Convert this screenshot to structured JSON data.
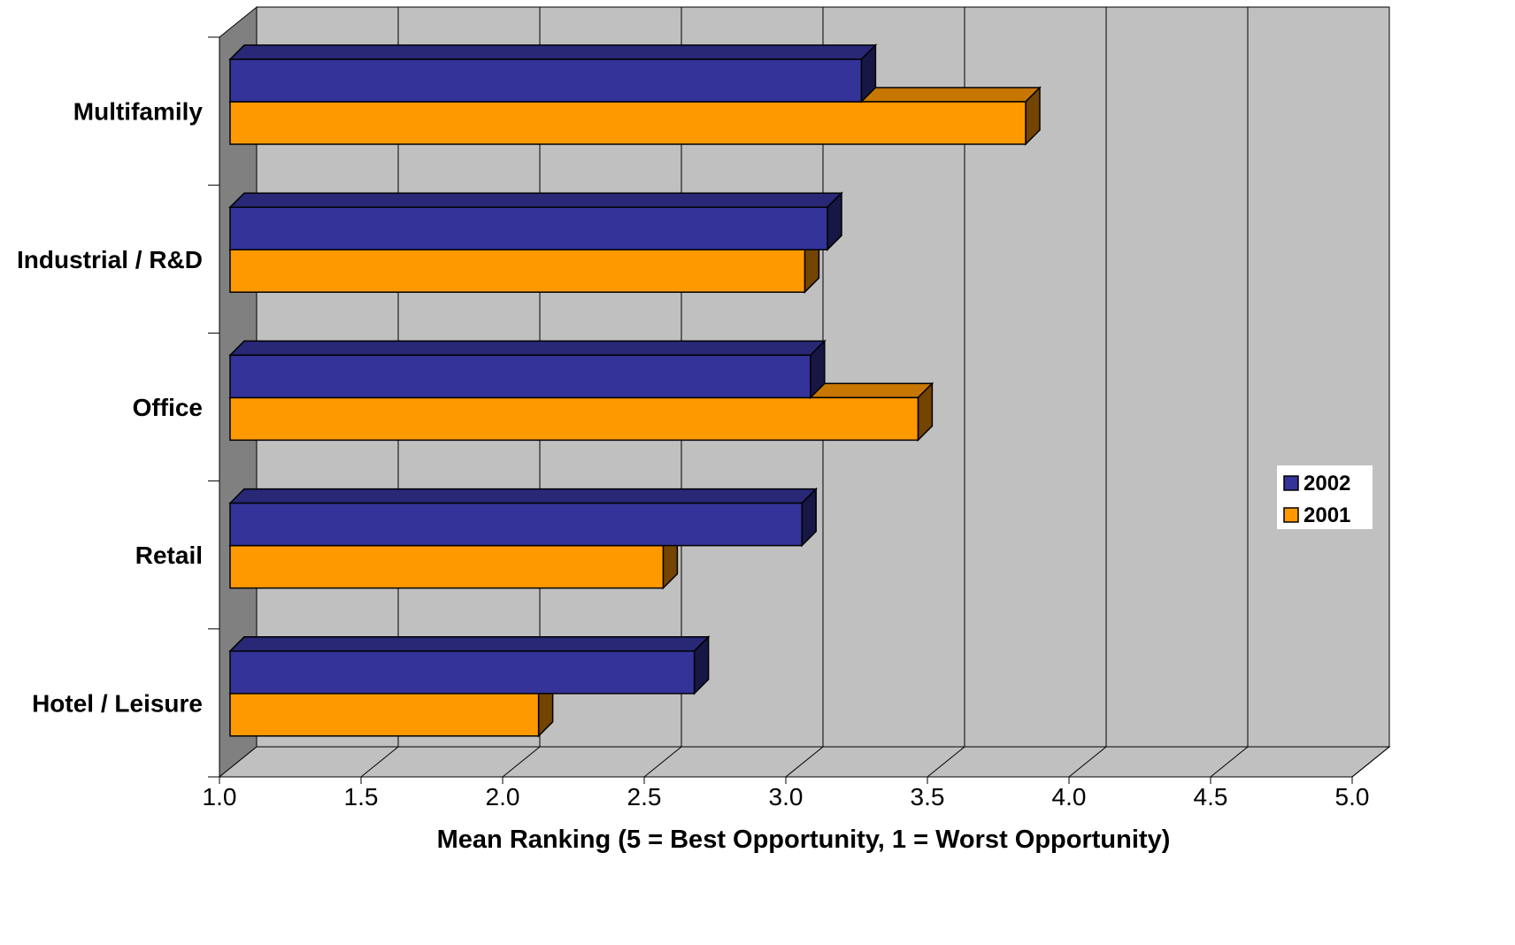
{
  "chart_data": {
    "type": "bar",
    "orientation": "horizontal",
    "three_d": true,
    "categories": [
      "Multifamily",
      "Industrial / R&D",
      "Office",
      "Retail",
      "Hotel / Leisure"
    ],
    "series": [
      {
        "name": "2002",
        "color": "#333399",
        "values": [
          3.27,
          3.15,
          3.09,
          3.06,
          2.68
        ]
      },
      {
        "name": "2001",
        "color": "#FF9900",
        "values": [
          3.85,
          3.07,
          3.47,
          2.57,
          2.13
        ]
      }
    ],
    "xlabel": "Mean Ranking (5 = Best Opportunity, 1 = Worst Opportunity)",
    "ylabel": "",
    "xlim": [
      1.0,
      5.0
    ],
    "xticks": [
      "1.0",
      "1.5",
      "2.0",
      "2.5",
      "3.0",
      "3.5",
      "4.0",
      "4.5",
      "5.0"
    ],
    "grid": true,
    "legend_position": "right",
    "colors": {
      "plot_wall": "#C0C0C0",
      "side_wall": "#808080",
      "floor": "#C0C0C0"
    }
  }
}
